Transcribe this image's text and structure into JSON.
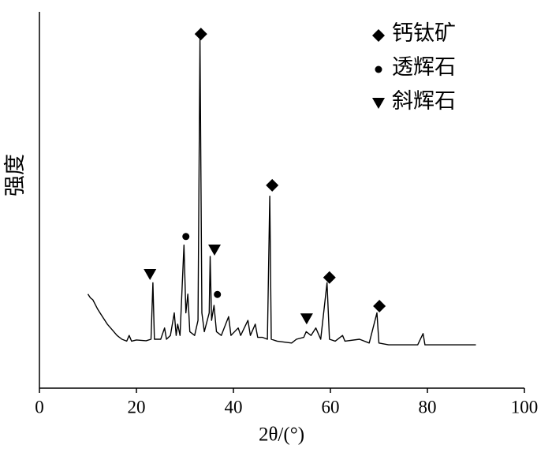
{
  "chart_data": {
    "type": "line",
    "xlabel": "2θ/(°)",
    "ylabel": "强度",
    "xlim": [
      0,
      100
    ],
    "xticks": [
      0,
      20,
      40,
      60,
      80,
      100
    ],
    "ylim": [
      0,
      100
    ],
    "color": "#000000",
    "x": [
      10.0,
      10.5,
      11,
      12,
      13,
      14,
      15,
      16,
      17,
      18,
      18.5,
      19,
      20,
      22,
      23,
      23.4,
      23.7,
      25,
      25.8,
      26.2,
      27,
      27.8,
      28.2,
      28.5,
      29,
      29.8,
      30.2,
      30.6,
      31,
      32,
      32.7,
      33.1,
      33.5,
      34,
      35,
      35.2,
      35.5,
      36,
      36.5,
      37.5,
      39,
      39.5,
      41,
      41.5,
      43,
      43.5,
      44.5,
      45,
      46,
      47,
      47.5,
      47.8,
      49,
      52,
      53,
      54.5,
      55,
      56,
      57,
      58,
      59.3,
      59.8,
      61,
      62.5,
      63,
      66,
      68,
      69.6,
      70,
      72,
      75,
      78,
      79.1,
      79.5,
      85,
      90
    ],
    "values": [
      25,
      24,
      23.5,
      21,
      19,
      17,
      15.5,
      14,
      13,
      12.5,
      14,
      12.5,
      12.8,
      12.6,
      13,
      28,
      13,
      13,
      16,
      13,
      14,
      20,
      14,
      17,
      14,
      38,
      20,
      25,
      15,
      14,
      18,
      93,
      20,
      15,
      20,
      35,
      18,
      22,
      15,
      14,
      19,
      14,
      16,
      14,
      18,
      14,
      17,
      13.5,
      13.5,
      13,
      51,
      13,
      12.5,
      12,
      13,
      13.5,
      15,
      14,
      16,
      13,
      28,
      13,
      12.5,
      14,
      12.5,
      13,
      12,
      20,
      12,
      11.5,
      11.5,
      11.5,
      14.5,
      11.5,
      11.5,
      11.5
    ],
    "legend": "upper right",
    "markers": [
      {
        "name": "钙钛矿",
        "symbol": "diamond",
        "x": [
          33.3,
          48.0,
          59.8,
          70.1
        ],
        "y": [
          94.1,
          53.9,
          29.4,
          21.8
        ]
      },
      {
        "name": "透辉石",
        "symbol": "circle",
        "x": [
          30.2,
          36.7
        ],
        "y": [
          40.3,
          24.9
        ]
      },
      {
        "name": "斜辉石",
        "symbol": "triangle",
        "x": [
          22.8,
          36.1,
          55.1
        ],
        "y": [
          30.2,
          36.7,
          18.4
        ]
      }
    ]
  }
}
